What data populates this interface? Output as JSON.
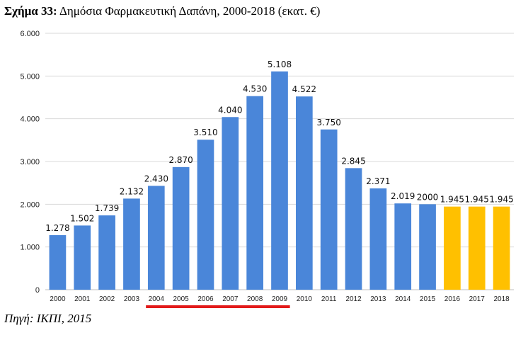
{
  "caption": {
    "number": "Σχήμα 33:",
    "text": "Δημόσια Φαρμακευτική Δαπάνη, 2000-2018 (εκατ. €)"
  },
  "source": "Πηγή: ΙΚΠΙ, 2015",
  "colors": {
    "actual": "#4a86d9",
    "projected": "#ffc000",
    "highlight_line": "#e21a1a",
    "grid": "#d9d9d9"
  },
  "chart_data": {
    "type": "bar",
    "title": "",
    "xlabel": "",
    "ylabel": "",
    "ylim": [
      0,
      6000
    ],
    "yticks": [
      0,
      1000,
      2000,
      3000,
      4000,
      5000,
      6000
    ],
    "ytick_labels": [
      "0",
      "1.000",
      "2.000",
      "3.000",
      "4.000",
      "5.000",
      "6.000"
    ],
    "grid": true,
    "categories": [
      "2000",
      "2001",
      "2002",
      "2003",
      "2004",
      "2005",
      "2006",
      "2007",
      "2008",
      "2009",
      "2010",
      "2011",
      "2012",
      "2013",
      "2014",
      "2015",
      "2016",
      "2017",
      "2018"
    ],
    "values": [
      1278,
      1502,
      1739,
      2132,
      2430,
      2870,
      3510,
      4040,
      4530,
      5108,
      4522,
      3750,
      2845,
      2371,
      2019,
      2000,
      1945,
      1945,
      1945
    ],
    "data_labels": [
      "1.278",
      "1.502",
      "1.739",
      "2.132",
      "2.430",
      "2.870",
      "3.510",
      "4.040",
      "4.530",
      "5.108",
      "4.522",
      "3.750",
      "2.845",
      "2.371",
      "2.019",
      "2000",
      "1.945",
      "1.945",
      "1.945"
    ],
    "projected_categories": [
      "2016",
      "2017",
      "2018"
    ],
    "highlight_range": [
      "2004",
      "2009"
    ]
  }
}
